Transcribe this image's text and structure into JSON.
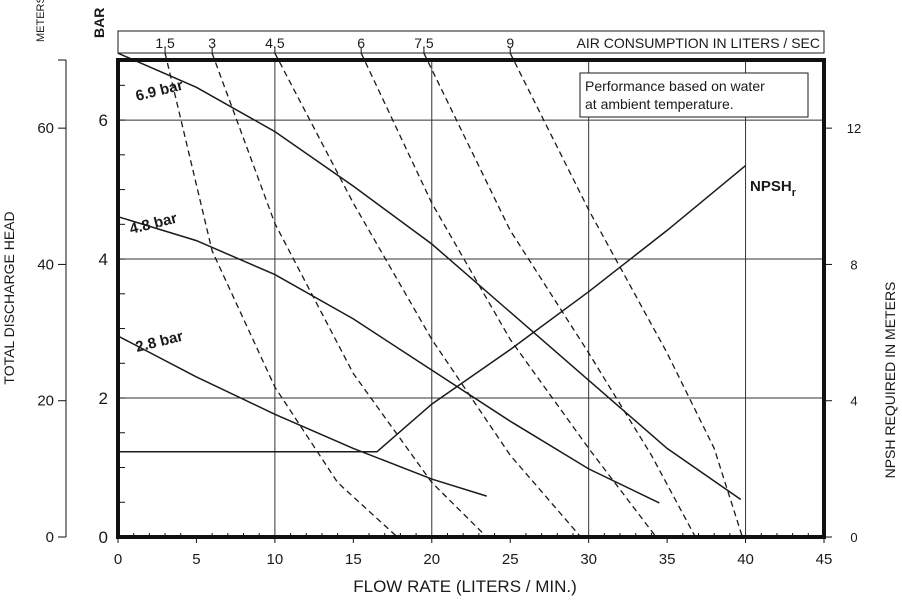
{
  "chart_data": {
    "type": "line",
    "title": "",
    "xlabel": "FLOW RATE (LITERS / MIN.)",
    "xlim": [
      0,
      45
    ],
    "x_ticks": [
      "0",
      "5",
      "10",
      "15",
      "20",
      "25",
      "30",
      "35",
      "40",
      "45"
    ],
    "ylabel_left": "TOTAL DISCHARGE HEAD",
    "ylabel_left_unit": "METERS",
    "ylim_meters": [
      0,
      70
    ],
    "y_ticks_meters": [
      "0",
      "20",
      "40",
      "60"
    ],
    "ylabel_bar": "BAR",
    "y_ticks_bar": [
      "0",
      "2",
      "4",
      "6"
    ],
    "ylabel_right": "NPSH REQUIRED IN METERS",
    "y_ticks_right": [
      "0",
      "4",
      "8",
      "12"
    ],
    "air_axis_label": "AIR CONSUMPTION IN LITERS / SEC",
    "air_ticks": [
      "1.5",
      "3",
      "4.5",
      "6",
      "7.5",
      "9"
    ],
    "note_lines": [
      "Performance based on water",
      "at ambient temperature."
    ],
    "grid": true,
    "series": [
      {
        "name": "6.9 bar",
        "style": "solid",
        "x": [
          0,
          5,
          10,
          15,
          20,
          25,
          30,
          35,
          39.7
        ],
        "y": [
          71,
          66,
          59.5,
          51.5,
          43,
          33,
          23,
          13,
          5.5
        ]
      },
      {
        "name": "4.8 bar",
        "style": "solid",
        "x": [
          0,
          5,
          10,
          15,
          20,
          25,
          30,
          34.5
        ],
        "y": [
          47,
          43.5,
          38.5,
          32,
          24.5,
          17,
          10,
          5
        ]
      },
      {
        "name": "2.8 bar",
        "style": "solid",
        "x": [
          0,
          5,
          10,
          15,
          20,
          23.5
        ],
        "y": [
          29.5,
          23.5,
          18,
          13,
          8.5,
          6
        ]
      },
      {
        "name": "NPSHr",
        "style": "solid",
        "axis": "right",
        "x": [
          0,
          16.5,
          20,
          25,
          30,
          35,
          40
        ],
        "y": [
          2.5,
          2.5,
          3.9,
          5.5,
          7.2,
          9.0,
          10.9
        ]
      },
      {
        "name": "1.5",
        "style": "dashed",
        "x": [
          3,
          6,
          10,
          14,
          17.8
        ],
        "y": [
          71,
          42,
          22,
          8,
          0
        ]
      },
      {
        "name": "3",
        "style": "dashed",
        "x": [
          6,
          10,
          15,
          20,
          23.5
        ],
        "y": [
          71,
          46,
          24,
          8,
          0
        ]
      },
      {
        "name": "4.5",
        "style": "dashed",
        "x": [
          10,
          15,
          20,
          25,
          29.5
        ],
        "y": [
          71,
          49,
          29,
          12,
          0
        ]
      },
      {
        "name": "6",
        "style": "dashed",
        "x": [
          15.5,
          20,
          25,
          30,
          34.3
        ],
        "y": [
          71,
          49,
          29,
          13,
          0
        ]
      },
      {
        "name": "7.5",
        "style": "dashed",
        "x": [
          19.5,
          25,
          30,
          34,
          36.8
        ],
        "y": [
          71,
          45,
          27,
          12,
          0
        ]
      },
      {
        "name": "9",
        "style": "dashed",
        "x": [
          25,
          30,
          35,
          38,
          39.8
        ],
        "y": [
          71,
          48,
          27,
          13,
          0
        ]
      }
    ],
    "curve_labels": [
      "6.9 bar",
      "4.8 bar",
      "2.8 bar"
    ],
    "npsh_label": {
      "main": "NPSH",
      "sub": "r"
    }
  }
}
